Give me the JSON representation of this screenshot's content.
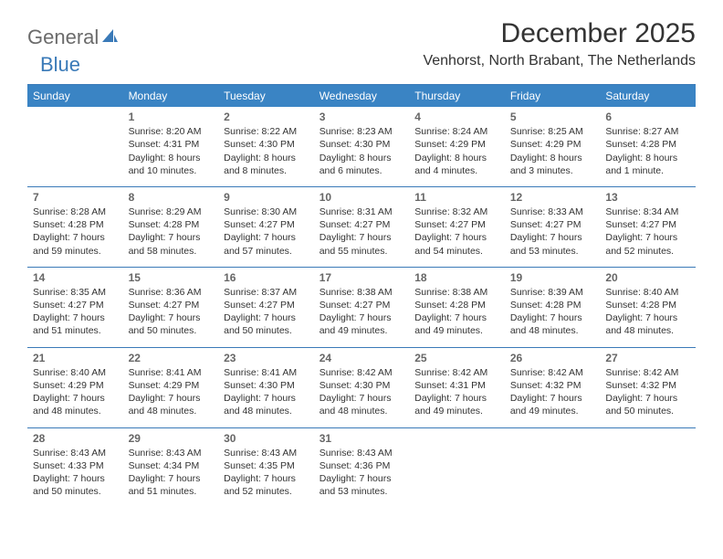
{
  "logo": {
    "general": "General",
    "blue": "Blue"
  },
  "header": {
    "month_title": "December 2025",
    "location": "Venhorst, North Brabant, The Netherlands"
  },
  "colors": {
    "header_bg": "#3a84c4",
    "header_text": "#ffffff",
    "divider": "#3a7ab8",
    "day_number": "#666666",
    "body_text": "#333333",
    "logo_gray": "#6b6b6b",
    "logo_blue": "#3a7ab8"
  },
  "weekdays": [
    "Sunday",
    "Monday",
    "Tuesday",
    "Wednesday",
    "Thursday",
    "Friday",
    "Saturday"
  ],
  "weeks": [
    [
      null,
      {
        "day": "1",
        "sunrise": "Sunrise: 8:20 AM",
        "sunset": "Sunset: 4:31 PM",
        "daylight1": "Daylight: 8 hours",
        "daylight2": "and 10 minutes."
      },
      {
        "day": "2",
        "sunrise": "Sunrise: 8:22 AM",
        "sunset": "Sunset: 4:30 PM",
        "daylight1": "Daylight: 8 hours",
        "daylight2": "and 8 minutes."
      },
      {
        "day": "3",
        "sunrise": "Sunrise: 8:23 AM",
        "sunset": "Sunset: 4:30 PM",
        "daylight1": "Daylight: 8 hours",
        "daylight2": "and 6 minutes."
      },
      {
        "day": "4",
        "sunrise": "Sunrise: 8:24 AM",
        "sunset": "Sunset: 4:29 PM",
        "daylight1": "Daylight: 8 hours",
        "daylight2": "and 4 minutes."
      },
      {
        "day": "5",
        "sunrise": "Sunrise: 8:25 AM",
        "sunset": "Sunset: 4:29 PM",
        "daylight1": "Daylight: 8 hours",
        "daylight2": "and 3 minutes."
      },
      {
        "day": "6",
        "sunrise": "Sunrise: 8:27 AM",
        "sunset": "Sunset: 4:28 PM",
        "daylight1": "Daylight: 8 hours",
        "daylight2": "and 1 minute."
      }
    ],
    [
      {
        "day": "7",
        "sunrise": "Sunrise: 8:28 AM",
        "sunset": "Sunset: 4:28 PM",
        "daylight1": "Daylight: 7 hours",
        "daylight2": "and 59 minutes."
      },
      {
        "day": "8",
        "sunrise": "Sunrise: 8:29 AM",
        "sunset": "Sunset: 4:28 PM",
        "daylight1": "Daylight: 7 hours",
        "daylight2": "and 58 minutes."
      },
      {
        "day": "9",
        "sunrise": "Sunrise: 8:30 AM",
        "sunset": "Sunset: 4:27 PM",
        "daylight1": "Daylight: 7 hours",
        "daylight2": "and 57 minutes."
      },
      {
        "day": "10",
        "sunrise": "Sunrise: 8:31 AM",
        "sunset": "Sunset: 4:27 PM",
        "daylight1": "Daylight: 7 hours",
        "daylight2": "and 55 minutes."
      },
      {
        "day": "11",
        "sunrise": "Sunrise: 8:32 AM",
        "sunset": "Sunset: 4:27 PM",
        "daylight1": "Daylight: 7 hours",
        "daylight2": "and 54 minutes."
      },
      {
        "day": "12",
        "sunrise": "Sunrise: 8:33 AM",
        "sunset": "Sunset: 4:27 PM",
        "daylight1": "Daylight: 7 hours",
        "daylight2": "and 53 minutes."
      },
      {
        "day": "13",
        "sunrise": "Sunrise: 8:34 AM",
        "sunset": "Sunset: 4:27 PM",
        "daylight1": "Daylight: 7 hours",
        "daylight2": "and 52 minutes."
      }
    ],
    [
      {
        "day": "14",
        "sunrise": "Sunrise: 8:35 AM",
        "sunset": "Sunset: 4:27 PM",
        "daylight1": "Daylight: 7 hours",
        "daylight2": "and 51 minutes."
      },
      {
        "day": "15",
        "sunrise": "Sunrise: 8:36 AM",
        "sunset": "Sunset: 4:27 PM",
        "daylight1": "Daylight: 7 hours",
        "daylight2": "and 50 minutes."
      },
      {
        "day": "16",
        "sunrise": "Sunrise: 8:37 AM",
        "sunset": "Sunset: 4:27 PM",
        "daylight1": "Daylight: 7 hours",
        "daylight2": "and 50 minutes."
      },
      {
        "day": "17",
        "sunrise": "Sunrise: 8:38 AM",
        "sunset": "Sunset: 4:27 PM",
        "daylight1": "Daylight: 7 hours",
        "daylight2": "and 49 minutes."
      },
      {
        "day": "18",
        "sunrise": "Sunrise: 8:38 AM",
        "sunset": "Sunset: 4:28 PM",
        "daylight1": "Daylight: 7 hours",
        "daylight2": "and 49 minutes."
      },
      {
        "day": "19",
        "sunrise": "Sunrise: 8:39 AM",
        "sunset": "Sunset: 4:28 PM",
        "daylight1": "Daylight: 7 hours",
        "daylight2": "and 48 minutes."
      },
      {
        "day": "20",
        "sunrise": "Sunrise: 8:40 AM",
        "sunset": "Sunset: 4:28 PM",
        "daylight1": "Daylight: 7 hours",
        "daylight2": "and 48 minutes."
      }
    ],
    [
      {
        "day": "21",
        "sunrise": "Sunrise: 8:40 AM",
        "sunset": "Sunset: 4:29 PM",
        "daylight1": "Daylight: 7 hours",
        "daylight2": "and 48 minutes."
      },
      {
        "day": "22",
        "sunrise": "Sunrise: 8:41 AM",
        "sunset": "Sunset: 4:29 PM",
        "daylight1": "Daylight: 7 hours",
        "daylight2": "and 48 minutes."
      },
      {
        "day": "23",
        "sunrise": "Sunrise: 8:41 AM",
        "sunset": "Sunset: 4:30 PM",
        "daylight1": "Daylight: 7 hours",
        "daylight2": "and 48 minutes."
      },
      {
        "day": "24",
        "sunrise": "Sunrise: 8:42 AM",
        "sunset": "Sunset: 4:30 PM",
        "daylight1": "Daylight: 7 hours",
        "daylight2": "and 48 minutes."
      },
      {
        "day": "25",
        "sunrise": "Sunrise: 8:42 AM",
        "sunset": "Sunset: 4:31 PM",
        "daylight1": "Daylight: 7 hours",
        "daylight2": "and 49 minutes."
      },
      {
        "day": "26",
        "sunrise": "Sunrise: 8:42 AM",
        "sunset": "Sunset: 4:32 PM",
        "daylight1": "Daylight: 7 hours",
        "daylight2": "and 49 minutes."
      },
      {
        "day": "27",
        "sunrise": "Sunrise: 8:42 AM",
        "sunset": "Sunset: 4:32 PM",
        "daylight1": "Daylight: 7 hours",
        "daylight2": "and 50 minutes."
      }
    ],
    [
      {
        "day": "28",
        "sunrise": "Sunrise: 8:43 AM",
        "sunset": "Sunset: 4:33 PM",
        "daylight1": "Daylight: 7 hours",
        "daylight2": "and 50 minutes."
      },
      {
        "day": "29",
        "sunrise": "Sunrise: 8:43 AM",
        "sunset": "Sunset: 4:34 PM",
        "daylight1": "Daylight: 7 hours",
        "daylight2": "and 51 minutes."
      },
      {
        "day": "30",
        "sunrise": "Sunrise: 8:43 AM",
        "sunset": "Sunset: 4:35 PM",
        "daylight1": "Daylight: 7 hours",
        "daylight2": "and 52 minutes."
      },
      {
        "day": "31",
        "sunrise": "Sunrise: 8:43 AM",
        "sunset": "Sunset: 4:36 PM",
        "daylight1": "Daylight: 7 hours",
        "daylight2": "and 53 minutes."
      },
      null,
      null,
      null
    ]
  ]
}
